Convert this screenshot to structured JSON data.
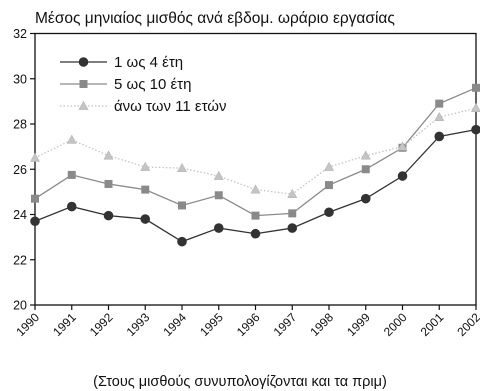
{
  "chart_data": {
    "type": "line",
    "title": "Μέσος μηνιαίος μισθός ανά εβδομ. ωράριο εργασίας",
    "caption": "(Στους μισθούς συνυπολογίζονται και τα πριμ)",
    "x": [
      "1990",
      "1991",
      "1992",
      "1993",
      "1994",
      "1995",
      "1996",
      "1997",
      "1998",
      "1999",
      "2000",
      "2001",
      "2002"
    ],
    "ylim": [
      20,
      32
    ],
    "yticks": [
      "20",
      "22",
      "24",
      "26",
      "28",
      "30",
      "32"
    ],
    "grid": false,
    "legend_position": "top-left",
    "series": [
      {
        "name": "1 ως 4 έτη",
        "marker": "circle",
        "color": "#333333",
        "line_style": "solid",
        "values": [
          23.7,
          24.35,
          23.95,
          23.8,
          22.8,
          23.4,
          23.15,
          23.4,
          24.1,
          24.7,
          25.7,
          27.45,
          27.75
        ]
      },
      {
        "name": "5 ως 10 έτη",
        "marker": "square",
        "color": "#8a8a8a",
        "line_style": "solid",
        "values": [
          24.7,
          25.75,
          25.35,
          25.1,
          24.4,
          24.85,
          23.95,
          24.05,
          25.3,
          26.0,
          26.95,
          28.9,
          29.6
        ]
      },
      {
        "name": "άνω των 11 ετών",
        "marker": "triangle",
        "color": "#c4c4c4",
        "line_style": "dotted",
        "values": [
          26.5,
          27.3,
          26.6,
          26.1,
          26.05,
          25.7,
          25.1,
          24.9,
          26.1,
          26.6,
          27.0,
          28.3,
          28.7
        ]
      }
    ]
  }
}
